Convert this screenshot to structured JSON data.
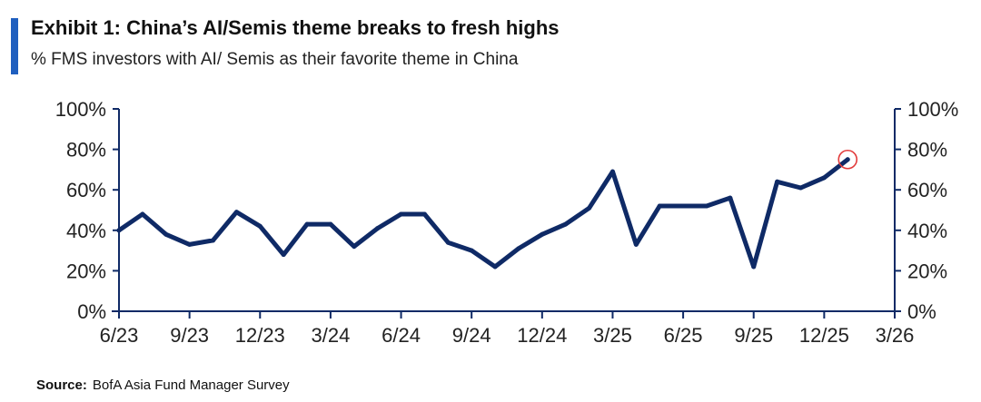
{
  "header": {
    "title": "Exhibit 1: China’s AI/Semis theme breaks to fresh highs",
    "subtitle": "% FMS investors with AI/ Semis as their favorite theme in China"
  },
  "source": {
    "label": "Source:",
    "text": "BofA Asia Fund Manager Survey"
  },
  "colors": {
    "accent": "#1f5fbf",
    "line": "#0f2a66",
    "highlight": "#e23b3b",
    "axis": "#0f2a66"
  },
  "chart_data": {
    "type": "line",
    "x_tick_labels": [
      "6/23",
      "9/23",
      "12/23",
      "3/24",
      "6/24",
      "9/24",
      "12/24",
      "3/25",
      "6/25",
      "9/25",
      "12/25",
      "3/26"
    ],
    "y_tick_labels": [
      "0%",
      "20%",
      "40%",
      "60%",
      "80%",
      "100%"
    ],
    "ylim": [
      0,
      100
    ],
    "xlim": [
      "2023-06",
      "2026-03"
    ],
    "dual_y_axis": true,
    "grid": false,
    "series": [
      {
        "x": [
          "2023-06",
          "2023-07",
          "2023-08",
          "2023-09",
          "2023-10",
          "2023-11",
          "2023-12",
          "2024-01",
          "2024-02",
          "2024-03",
          "2024-04",
          "2024-05",
          "2024-06",
          "2024-07",
          "2024-08",
          "2024-09",
          "2024-10",
          "2024-11",
          "2024-12",
          "2025-01",
          "2025-02",
          "2025-03",
          "2025-04",
          "2025-05",
          "2025-06",
          "2025-07",
          "2025-08",
          "2025-09",
          "2025-10",
          "2025-11",
          "2025-12",
          "2026-01"
        ],
        "values": [
          40,
          48,
          38,
          33,
          35,
          49,
          42,
          28,
          43,
          43,
          32,
          41,
          48,
          48,
          34,
          30,
          22,
          31,
          38,
          43,
          51,
          69,
          33,
          52,
          52,
          52,
          56,
          22,
          64,
          61,
          66,
          75
        ]
      }
    ],
    "highlight_last_point": true
  }
}
